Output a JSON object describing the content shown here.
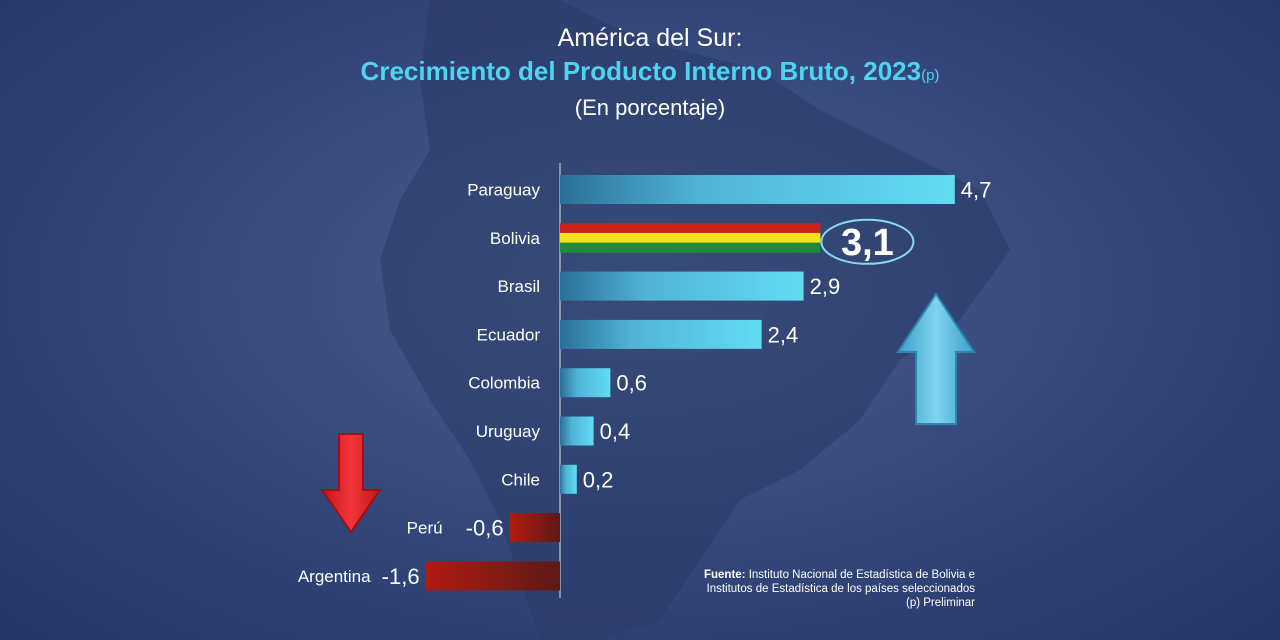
{
  "title": "América del Sur:",
  "subtitle": "Crecimiento del Producto Interno Bruto, 2023",
  "subtitle_suffix": "(p)",
  "unit_note": "(En porcentaje)",
  "source": {
    "label": "Fuente:",
    "line1": "Instituto Nacional de Estadística de Bolivia e",
    "line2": "Institutos de Estadística de los países seleccionados",
    "line3": "(p) Preliminar"
  },
  "colors": {
    "positive_bar": "#5ad5ee",
    "negative_bar": "#a01c10",
    "bolivia_flag": [
      "#c8261c",
      "#f6e11a",
      "#1e8a3c"
    ],
    "up_arrow": "#5bc3e2",
    "down_arrow": "#e8262a"
  },
  "icons": {
    "up": "arrow-up-icon",
    "down": "arrow-down-icon",
    "background": "south-america-map"
  },
  "chart_data": {
    "type": "bar",
    "orientation": "horizontal",
    "categories": [
      "Paraguay",
      "Bolivia",
      "Brasil",
      "Ecuador",
      "Colombia",
      "Uruguay",
      "Chile",
      "Perú",
      "Argentina"
    ],
    "values": [
      4.7,
      3.1,
      2.9,
      2.4,
      0.6,
      0.4,
      0.2,
      -0.6,
      -1.6
    ],
    "value_labels": [
      "4,7",
      "3,1",
      "2,9",
      "2,4",
      "0,6",
      "0,4",
      "0,2",
      "-0,6",
      "-1,6"
    ],
    "highlight": "Bolivia",
    "xlim": [
      -1.6,
      4.7
    ],
    "grid": false,
    "legend": "none"
  }
}
